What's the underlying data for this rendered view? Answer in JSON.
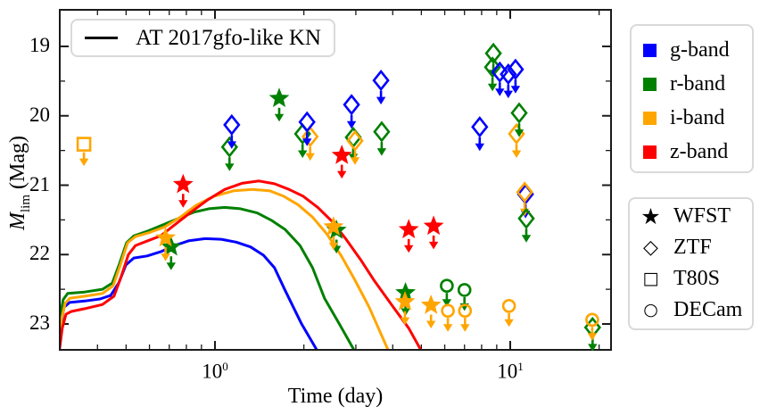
{
  "figure": {
    "background": "#ffffff",
    "frame_color": "#1a1a1a"
  },
  "plot": {
    "xlabel": "Time (day)",
    "ylabel": {
      "main": "M",
      "sub": "lim",
      "rest": " (Mag)"
    },
    "kn_legend": {
      "label": "AT 2017gfo-like KN"
    }
  },
  "legends": {
    "bands": {
      "items": [
        {
          "key": "g",
          "label": "g-band",
          "color": "#0000FF"
        },
        {
          "key": "r",
          "label": "r-band",
          "color": "#008000"
        },
        {
          "key": "i",
          "label": "i-band",
          "color": "#FFA500"
        },
        {
          "key": "z",
          "label": "z-band",
          "color": "#FF0000"
        }
      ]
    },
    "instruments": {
      "items": [
        {
          "key": "WFST",
          "glyph": "★",
          "label": "WFST",
          "marker": "star"
        },
        {
          "key": "ZTF",
          "glyph": "◇",
          "label": "ZTF",
          "marker": "diamond"
        },
        {
          "key": "T80S",
          "glyph": "□",
          "label": "T80S",
          "marker": "square"
        },
        {
          "key": "DECam",
          "glyph": "○",
          "label": "DECam",
          "marker": "circle"
        }
      ]
    }
  },
  "chart_data": {
    "type": "line+scatter",
    "title": "",
    "xlabel": "Time (day)",
    "ylabel": "M_lim (Mag)",
    "x_scale": "log",
    "x_range_days": [
      0.3,
      21.8
    ],
    "y_range_mag": [
      18.46,
      23.4
    ],
    "y_inverted": true,
    "model_label": "AT 2017gfo-like KN",
    "colors": {
      "g": "#0000FF",
      "r": "#008000",
      "i": "#FFA500",
      "z": "#FF0000"
    },
    "marker_by_inst": {
      "WFST": "star",
      "ZTF": "diamond",
      "T80S": "square",
      "DECam": "circle"
    },
    "x_ticks": {
      "major": [
        {
          "t": 1,
          "base": "10",
          "exp": "0"
        },
        {
          "t": 10,
          "base": "10",
          "exp": "1"
        }
      ],
      "minor": [
        0.4,
        0.5,
        0.6,
        0.7,
        0.8,
        0.9,
        2,
        3,
        4,
        5,
        6,
        7,
        8,
        9,
        20
      ]
    },
    "y_ticks": {
      "major": [
        {
          "mag": 19,
          "label": "19"
        },
        {
          "mag": 20,
          "label": "20"
        },
        {
          "mag": 21,
          "label": "21"
        },
        {
          "mag": 22,
          "label": "22"
        },
        {
          "mag": 23,
          "label": "23"
        }
      ],
      "minor": [
        19.5,
        20.5,
        21.5,
        22.5
      ]
    },
    "series": [
      {
        "name": "KN model g-band",
        "band": "g",
        "points": [
          [
            0.296,
            23.44
          ],
          [
            0.302,
            22.99
          ],
          [
            0.308,
            22.76
          ],
          [
            0.322,
            22.69
          ],
          [
            0.362,
            22.67
          ],
          [
            0.408,
            22.64
          ],
          [
            0.443,
            22.59
          ],
          [
            0.472,
            22.41
          ],
          [
            0.499,
            22.15
          ],
          [
            0.531,
            22.05
          ],
          [
            0.589,
            22.02
          ],
          [
            0.654,
            21.96
          ],
          [
            0.731,
            21.87
          ],
          [
            0.817,
            21.8
          ],
          [
            0.926,
            21.77
          ],
          [
            1.05,
            21.78
          ],
          [
            1.18,
            21.82
          ],
          [
            1.32,
            21.89
          ],
          [
            1.46,
            22.01
          ],
          [
            1.59,
            22.19
          ],
          [
            1.73,
            22.52
          ],
          [
            1.96,
            22.99
          ],
          [
            2.23,
            23.4
          ]
        ]
      },
      {
        "name": "KN model r-band",
        "band": "r",
        "points": [
          [
            0.296,
            23.44
          ],
          [
            0.3,
            22.86
          ],
          [
            0.306,
            22.65
          ],
          [
            0.317,
            22.56
          ],
          [
            0.362,
            22.54
          ],
          [
            0.416,
            22.5
          ],
          [
            0.449,
            22.41
          ],
          [
            0.475,
            22.13
          ],
          [
            0.502,
            21.83
          ],
          [
            0.531,
            21.73
          ],
          [
            0.593,
            21.66
          ],
          [
            0.668,
            21.57
          ],
          [
            0.752,
            21.48
          ],
          [
            0.847,
            21.39
          ],
          [
            0.953,
            21.34
          ],
          [
            1.08,
            21.32
          ],
          [
            1.22,
            21.34
          ],
          [
            1.39,
            21.4
          ],
          [
            1.56,
            21.51
          ],
          [
            1.73,
            21.64
          ],
          [
            1.94,
            21.87
          ],
          [
            2.14,
            22.19
          ],
          [
            2.35,
            22.63
          ],
          [
            2.63,
            22.99
          ],
          [
            2.98,
            23.4
          ]
        ]
      },
      {
        "name": "KN model i-band",
        "band": "i",
        "points": [
          [
            0.296,
            23.44
          ],
          [
            0.302,
            22.94
          ],
          [
            0.311,
            22.7
          ],
          [
            0.322,
            22.63
          ],
          [
            0.362,
            22.6
          ],
          [
            0.416,
            22.56
          ],
          [
            0.452,
            22.45
          ],
          [
            0.478,
            22.15
          ],
          [
            0.506,
            21.83
          ],
          [
            0.538,
            21.74
          ],
          [
            0.602,
            21.68
          ],
          [
            0.677,
            21.6
          ],
          [
            0.763,
            21.46
          ],
          [
            0.864,
            21.29
          ],
          [
            0.993,
            21.16
          ],
          [
            1.16,
            21.08
          ],
          [
            1.34,
            21.06
          ],
          [
            1.53,
            21.08
          ],
          [
            1.71,
            21.16
          ],
          [
            1.91,
            21.28
          ],
          [
            2.14,
            21.46
          ],
          [
            2.39,
            21.7
          ],
          [
            2.67,
            22.01
          ],
          [
            2.98,
            22.37
          ],
          [
            3.33,
            22.76
          ],
          [
            3.88,
            23.4
          ]
        ]
      },
      {
        "name": "KN model z-band",
        "band": "z",
        "points": [
          [
            0.296,
            23.44
          ],
          [
            0.304,
            23.06
          ],
          [
            0.313,
            22.86
          ],
          [
            0.326,
            22.82
          ],
          [
            0.362,
            22.78
          ],
          [
            0.416,
            22.72
          ],
          [
            0.455,
            22.6
          ],
          [
            0.481,
            22.32
          ],
          [
            0.509,
            22.0
          ],
          [
            0.538,
            21.87
          ],
          [
            0.593,
            21.8
          ],
          [
            0.654,
            21.73
          ],
          [
            0.731,
            21.57
          ],
          [
            0.829,
            21.39
          ],
          [
            0.946,
            21.21
          ],
          [
            1.08,
            21.06
          ],
          [
            1.24,
            20.97
          ],
          [
            1.41,
            20.94
          ],
          [
            1.59,
            20.98
          ],
          [
            1.78,
            21.06
          ],
          [
            1.99,
            21.16
          ],
          [
            2.23,
            21.32
          ],
          [
            2.49,
            21.52
          ],
          [
            2.78,
            21.78
          ],
          [
            3.11,
            22.07
          ],
          [
            3.47,
            22.38
          ],
          [
            3.99,
            22.74
          ],
          [
            4.53,
            23.06
          ],
          [
            5.02,
            23.4
          ]
        ]
      }
    ],
    "upper_limits": [
      {
        "t": 0.36,
        "mag": 20.41,
        "band": "i",
        "inst": "T80S"
      },
      {
        "t": 0.71,
        "mag": 21.89,
        "band": "r",
        "inst": "WFST"
      },
      {
        "t": 0.68,
        "mag": 21.76,
        "band": "i",
        "inst": "WFST"
      },
      {
        "t": 0.78,
        "mag": 20.99,
        "band": "z",
        "inst": "WFST"
      },
      {
        "t": 1.12,
        "mag": 20.45,
        "band": "r",
        "inst": "ZTF"
      },
      {
        "t": 1.14,
        "mag": 20.13,
        "band": "g",
        "inst": "ZTF"
      },
      {
        "t": 1.65,
        "mag": 19.75,
        "band": "r",
        "inst": "WFST"
      },
      {
        "t": 1.98,
        "mag": 20.26,
        "band": "r",
        "inst": "ZTF"
      },
      {
        "t": 2.1,
        "mag": 20.3,
        "band": "i",
        "inst": "ZTF"
      },
      {
        "t": 2.05,
        "mag": 20.09,
        "band": "g",
        "inst": "ZTF"
      },
      {
        "t": 2.58,
        "mag": 21.65,
        "band": "r",
        "inst": "WFST"
      },
      {
        "t": 2.52,
        "mag": 21.6,
        "band": "i",
        "inst": "WFST"
      },
      {
        "t": 2.69,
        "mag": 20.57,
        "band": "z",
        "inst": "WFST"
      },
      {
        "t": 2.94,
        "mag": 20.31,
        "band": "r",
        "inst": "ZTF"
      },
      {
        "t": 2.98,
        "mag": 20.36,
        "band": "i",
        "inst": "ZTF"
      },
      {
        "t": 2.9,
        "mag": 19.84,
        "band": "g",
        "inst": "ZTF"
      },
      {
        "t": 3.67,
        "mag": 20.23,
        "band": "r",
        "inst": "ZTF"
      },
      {
        "t": 3.65,
        "mag": 19.49,
        "band": "g",
        "inst": "ZTF"
      },
      {
        "t": 4.42,
        "mag": 22.55,
        "band": "r",
        "inst": "WFST"
      },
      {
        "t": 4.4,
        "mag": 22.68,
        "band": "i",
        "inst": "WFST"
      },
      {
        "t": 4.53,
        "mag": 21.64,
        "band": "z",
        "inst": "WFST"
      },
      {
        "t": 5.39,
        "mag": 22.73,
        "band": "i",
        "inst": "WFST"
      },
      {
        "t": 5.5,
        "mag": 21.59,
        "band": "z",
        "inst": "WFST"
      },
      {
        "t": 6.1,
        "mag": 22.45,
        "band": "r",
        "inst": "DECam"
      },
      {
        "t": 6.15,
        "mag": 22.81,
        "band": "i",
        "inst": "DECam"
      },
      {
        "t": 7.0,
        "mag": 22.51,
        "band": "r",
        "inst": "DECam"
      },
      {
        "t": 7.03,
        "mag": 22.81,
        "band": "i",
        "inst": "DECam"
      },
      {
        "t": 7.88,
        "mag": 20.16,
        "band": "g",
        "inst": "ZTF"
      },
      {
        "t": 8.77,
        "mag": 19.1,
        "band": "r",
        "inst": "ZTF"
      },
      {
        "t": 8.71,
        "mag": 19.3,
        "band": "r",
        "inst": "ZTF"
      },
      {
        "t": 9.22,
        "mag": 19.37,
        "band": "g",
        "inst": "ZTF"
      },
      {
        "t": 9.85,
        "mag": 19.4,
        "band": "g",
        "inst": "ZTF"
      },
      {
        "t": 10.42,
        "mag": 19.33,
        "band": "g",
        "inst": "ZTF"
      },
      {
        "t": 9.9,
        "mag": 22.74,
        "band": "i",
        "inst": "DECam"
      },
      {
        "t": 10.5,
        "mag": 20.26,
        "band": "i",
        "inst": "ZTF"
      },
      {
        "t": 10.72,
        "mag": 19.96,
        "band": "r",
        "inst": "ZTF"
      },
      {
        "t": 11.26,
        "mag": 21.13,
        "band": "g",
        "inst": "ZTF"
      },
      {
        "t": 11.19,
        "mag": 21.1,
        "band": "i",
        "inst": "ZTF"
      },
      {
        "t": 11.33,
        "mag": 21.48,
        "band": "r",
        "inst": "ZTF"
      },
      {
        "t": 19.0,
        "mag": 23.05,
        "band": "r",
        "inst": "ZTF"
      },
      {
        "t": 18.95,
        "mag": 22.94,
        "band": "i",
        "inst": "DECam"
      }
    ]
  }
}
